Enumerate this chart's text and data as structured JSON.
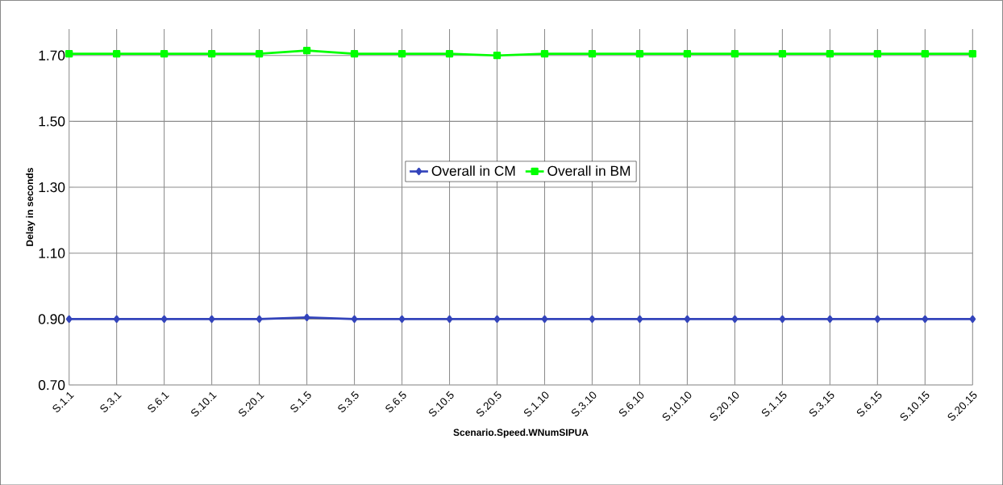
{
  "chart_data": {
    "type": "line",
    "xlabel": "Scenario.Speed.WNumSIPUA",
    "ylabel": "Delay in  seconds",
    "categories": [
      "S.1.1",
      "S.3.1",
      "S.6.1",
      "S.10.1",
      "S.20.1",
      "S.1.5",
      "S.3.5",
      "S.6.5",
      "S.10.5",
      "S.20.5",
      "S.1.10",
      "S.3.10",
      "S.6.10",
      "S.10.10",
      "S.20.10",
      "S.1.15",
      "S.3.15",
      "S.6.15",
      "S.10.15",
      "S.20.15"
    ],
    "series": [
      {
        "name": "Overall in CM",
        "color": "#3344bb",
        "marker": "diamond",
        "values": [
          0.9,
          0.9,
          0.9,
          0.9,
          0.9,
          0.905,
          0.9,
          0.9,
          0.9,
          0.9,
          0.9,
          0.9,
          0.9,
          0.9,
          0.9,
          0.9,
          0.9,
          0.9,
          0.9,
          0.9
        ]
      },
      {
        "name": "Overall in BM",
        "color": "#00ff00",
        "marker": "square",
        "values": [
          1.705,
          1.705,
          1.705,
          1.705,
          1.705,
          1.715,
          1.705,
          1.705,
          1.705,
          1.7,
          1.705,
          1.705,
          1.705,
          1.705,
          1.705,
          1.705,
          1.705,
          1.705,
          1.705,
          1.705
        ]
      }
    ],
    "ylim": [
      0.7,
      1.78
    ],
    "yticks": [
      {
        "value": 0.7,
        "label": "0.70"
      },
      {
        "value": 0.9,
        "label": "0.90"
      },
      {
        "value": 1.1,
        "label": "1.10"
      },
      {
        "value": 1.3,
        "label": "1.30"
      },
      {
        "value": 1.5,
        "label": "1.50"
      },
      {
        "value": 1.7,
        "label": "1.70"
      }
    ],
    "grid": true,
    "legend": "center"
  }
}
